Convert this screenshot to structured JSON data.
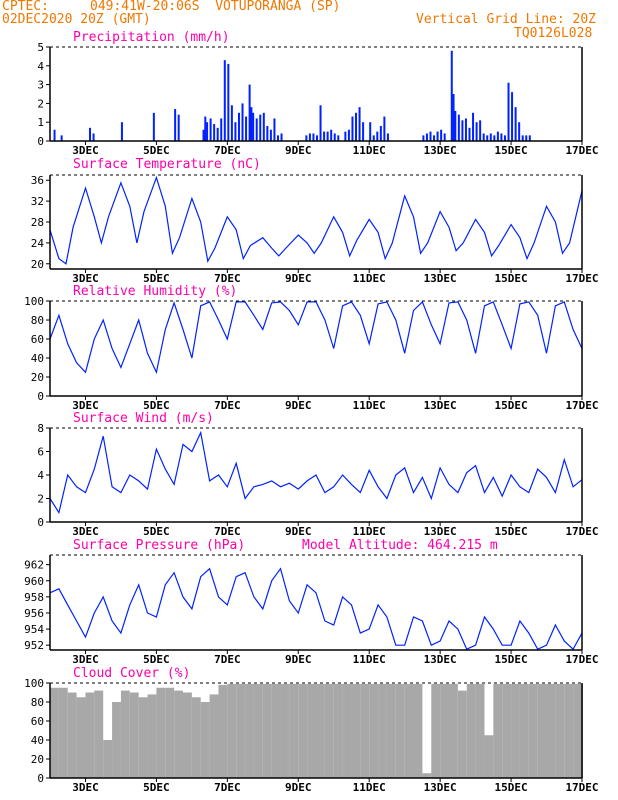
{
  "header": {
    "source": "CPTEC:",
    "location": "049:41W-20:06S  VOTUPORANGA (SP)",
    "run": "02DEC2020 20Z (GMT)",
    "grid_note": "Vertical Grid Line: 20Z",
    "code": "TQ0126L028"
  },
  "colors": {
    "header": "#f07800",
    "title": "#ff00aa",
    "series": "#0022ff",
    "bar": "#0022ff",
    "cloud": "#a8a8a8",
    "axis": "#000000"
  },
  "chart_data": [
    {
      "type": "bar",
      "title": "Precipitation (mm/h)",
      "x_ticks": [
        "3DEC",
        "5DEC",
        "7DEC",
        "9DEC",
        "11DEC",
        "13DEC",
        "15DEC",
        "17DEC"
      ],
      "ylim": [
        0,
        5
      ],
      "y_ticks": [
        0,
        1,
        2,
        3,
        4,
        5
      ],
      "x": [
        0.1,
        0.3,
        1.1,
        1.2,
        2.0,
        2.9,
        3.5,
        3.6,
        4.3,
        4.35,
        4.4,
        4.5,
        4.6,
        4.7,
        4.8,
        4.9,
        5.0,
        5.1,
        5.2,
        5.3,
        5.4,
        5.5,
        5.6,
        5.65,
        5.7,
        5.8,
        5.9,
        6.0,
        6.1,
        6.2,
        6.3,
        6.4,
        6.5,
        7.2,
        7.3,
        7.4,
        7.5,
        7.6,
        7.7,
        7.8,
        7.9,
        8.0,
        8.1,
        8.3,
        8.4,
        8.5,
        8.6,
        8.7,
        8.8,
        9.0,
        9.1,
        9.2,
        9.3,
        9.4,
        9.5,
        10.5,
        10.6,
        10.7,
        10.8,
        10.9,
        11.0,
        11.1,
        11.3,
        11.35,
        11.4,
        11.5,
        11.6,
        11.7,
        11.8,
        11.9,
        12.0,
        12.1,
        12.2,
        12.3,
        12.4,
        12.5,
        12.6,
        12.7,
        12.8,
        12.9,
        13.0,
        13.1,
        13.2,
        13.3,
        13.4,
        13.5
      ],
      "values": [
        0.6,
        0.3,
        0.7,
        0.4,
        1.0,
        1.5,
        1.7,
        1.4,
        0.6,
        1.3,
        1.0,
        1.2,
        0.9,
        0.7,
        1.2,
        4.3,
        4.1,
        1.9,
        1.0,
        1.5,
        2.0,
        1.3,
        3.0,
        1.8,
        1.5,
        1.2,
        1.4,
        1.5,
        0.8,
        0.6,
        1.2,
        0.3,
        0.4,
        0.3,
        0.4,
        0.4,
        0.3,
        1.9,
        0.5,
        0.5,
        0.6,
        0.4,
        0.3,
        0.5,
        0.6,
        1.3,
        1.5,
        1.8,
        1.0,
        1.0,
        0.3,
        0.5,
        0.8,
        1.3,
        0.4,
        0.3,
        0.4,
        0.5,
        0.3,
        0.5,
        0.6,
        0.4,
        4.8,
        2.5,
        1.6,
        1.4,
        1.1,
        1.2,
        0.7,
        1.5,
        1.0,
        1.1,
        0.4,
        0.3,
        0.4,
        0.3,
        0.5,
        0.4,
        0.3,
        3.1,
        2.6,
        1.8,
        1.0,
        0.3,
        0.3,
        0.3
      ]
    },
    {
      "type": "line",
      "title": "Surface Temperature (nC)",
      "x_ticks": [
        "3DEC",
        "5DEC",
        "7DEC",
        "9DEC",
        "11DEC",
        "13DEC",
        "15DEC",
        "17DEC"
      ],
      "ylim": [
        19,
        37
      ],
      "y_ticks": [
        20,
        24,
        28,
        32,
        36
      ],
      "x": [
        0.0,
        0.25,
        0.45,
        0.65,
        1.0,
        1.25,
        1.45,
        1.65,
        2.0,
        2.25,
        2.45,
        2.65,
        3.0,
        3.25,
        3.45,
        3.65,
        4.0,
        4.25,
        4.45,
        4.65,
        5.0,
        5.25,
        5.45,
        5.65,
        6.0,
        6.25,
        6.45,
        6.65,
        7.0,
        7.25,
        7.45,
        7.65,
        8.0,
        8.25,
        8.45,
        8.65,
        9.0,
        9.25,
        9.45,
        9.65,
        10.0,
        10.25,
        10.45,
        10.65,
        11.0,
        11.25,
        11.45,
        11.65,
        12.0,
        12.25,
        12.45,
        12.65,
        13.0,
        13.25,
        13.45,
        13.65,
        14.0,
        14.25,
        14.45,
        14.65,
        15.0
      ],
      "values": [
        26.5,
        21.0,
        20.0,
        27.0,
        34.5,
        29.0,
        24.0,
        29.0,
        35.5,
        31.0,
        24.0,
        30.0,
        36.5,
        31.0,
        22.0,
        25.0,
        32.5,
        28.0,
        20.5,
        23.0,
        29.0,
        26.5,
        21.0,
        23.5,
        25.0,
        23.0,
        21.5,
        23.0,
        25.5,
        24.0,
        22.0,
        24.0,
        29.0,
        26.0,
        21.5,
        24.5,
        28.5,
        26.0,
        21.0,
        24.0,
        33.0,
        29.0,
        22.0,
        24.0,
        30.0,
        27.0,
        22.5,
        24.0,
        28.5,
        26.0,
        21.5,
        23.5,
        27.5,
        25.0,
        21.0,
        24.0,
        31.0,
        28.0,
        22.0,
        24.0,
        34.0
      ]
    },
    {
      "type": "line",
      "title": "Relative Humidity (%)",
      "x_ticks": [
        "3DEC",
        "5DEC",
        "7DEC",
        "9DEC",
        "11DEC",
        "13DEC",
        "15DEC",
        "17DEC"
      ],
      "ylim": [
        0,
        100
      ],
      "y_ticks": [
        0,
        20,
        40,
        60,
        80,
        100
      ],
      "x": [
        0.0,
        0.25,
        0.5,
        0.75,
        1.0,
        1.25,
        1.5,
        1.75,
        2.0,
        2.25,
        2.5,
        2.75,
        3.0,
        3.25,
        3.5,
        3.75,
        4.0,
        4.25,
        4.5,
        4.75,
        5.0,
        5.25,
        5.5,
        5.75,
        6.0,
        6.25,
        6.5,
        6.75,
        7.0,
        7.25,
        7.5,
        7.75,
        8.0,
        8.25,
        8.5,
        8.75,
        9.0,
        9.25,
        9.5,
        9.75,
        10.0,
        10.25,
        10.5,
        10.75,
        11.0,
        11.25,
        11.5,
        11.75,
        12.0,
        12.25,
        12.5,
        12.75,
        13.0,
        13.25,
        13.5,
        13.75,
        14.0,
        14.25,
        14.5,
        14.75,
        15.0
      ],
      "values": [
        60,
        85,
        55,
        35,
        25,
        60,
        80,
        50,
        30,
        55,
        80,
        45,
        25,
        70,
        98,
        70,
        40,
        95,
        99,
        80,
        60,
        99,
        99,
        85,
        70,
        98,
        99,
        90,
        75,
        99,
        99,
        80,
        50,
        95,
        99,
        85,
        55,
        97,
        99,
        80,
        45,
        90,
        99,
        75,
        55,
        98,
        99,
        80,
        45,
        95,
        99,
        75,
        50,
        97,
        99,
        85,
        45,
        95,
        99,
        70,
        50
      ]
    },
    {
      "type": "line",
      "title": "Surface Wind (m/s)",
      "x_ticks": [
        "3DEC",
        "5DEC",
        "7DEC",
        "9DEC",
        "11DEC",
        "13DEC",
        "15DEC",
        "17DEC"
      ],
      "ylim": [
        0,
        8
      ],
      "y_ticks": [
        0,
        2,
        4,
        6,
        8
      ],
      "x": [
        0.0,
        0.25,
        0.5,
        0.75,
        1.0,
        1.25,
        1.5,
        1.75,
        2.0,
        2.25,
        2.5,
        2.75,
        3.0,
        3.25,
        3.5,
        3.75,
        4.0,
        4.25,
        4.5,
        4.75,
        5.0,
        5.25,
        5.5,
        5.75,
        6.0,
        6.25,
        6.5,
        6.75,
        7.0,
        7.25,
        7.5,
        7.75,
        8.0,
        8.25,
        8.5,
        8.75,
        9.0,
        9.25,
        9.5,
        9.75,
        10.0,
        10.25,
        10.5,
        10.75,
        11.0,
        11.25,
        11.5,
        11.75,
        12.0,
        12.25,
        12.5,
        12.75,
        13.0,
        13.25,
        13.5,
        13.75,
        14.0,
        14.25,
        14.5,
        14.75,
        15.0
      ],
      "values": [
        2.0,
        0.8,
        4.0,
        3.0,
        2.5,
        4.5,
        7.3,
        3.0,
        2.5,
        4.0,
        3.5,
        2.8,
        6.2,
        4.5,
        3.2,
        6.6,
        6.0,
        7.6,
        3.5,
        4.0,
        3.0,
        5.0,
        2.0,
        3.0,
        3.2,
        3.5,
        3.0,
        3.3,
        2.8,
        3.5,
        4.0,
        2.5,
        3.0,
        4.0,
        3.2,
        2.5,
        4.4,
        3.0,
        2.0,
        4.0,
        4.6,
        2.5,
        3.8,
        2.0,
        4.6,
        3.2,
        2.5,
        4.2,
        4.8,
        2.5,
        3.8,
        2.2,
        4.0,
        3.0,
        2.5,
        4.5,
        3.8,
        2.5,
        5.3,
        3.0,
        3.6
      ]
    },
    {
      "type": "line",
      "title": "Surface Pressure (hPa)",
      "annotation": "Model Altitude: 464.215 m",
      "x_ticks": [
        "3DEC",
        "5DEC",
        "7DEC",
        "9DEC",
        "11DEC",
        "13DEC",
        "15DEC",
        "17DEC"
      ],
      "ylim": [
        951.4,
        963.2
      ],
      "y_ticks": [
        952,
        954,
        956,
        958,
        960,
        962
      ],
      "x": [
        0.0,
        0.25,
        0.5,
        0.75,
        1.0,
        1.25,
        1.5,
        1.75,
        2.0,
        2.25,
        2.5,
        2.75,
        3.0,
        3.25,
        3.5,
        3.75,
        4.0,
        4.25,
        4.5,
        4.75,
        5.0,
        5.25,
        5.5,
        5.75,
        6.0,
        6.25,
        6.5,
        6.75,
        7.0,
        7.25,
        7.5,
        7.75,
        8.0,
        8.25,
        8.5,
        8.75,
        9.0,
        9.25,
        9.5,
        9.75,
        10.0,
        10.25,
        10.5,
        10.75,
        11.0,
        11.25,
        11.5,
        11.75,
        12.0,
        12.25,
        12.5,
        12.75,
        13.0,
        13.25,
        13.5,
        13.75,
        14.0,
        14.25,
        14.5,
        14.75,
        15.0
      ],
      "values": [
        958.5,
        959.0,
        957.0,
        955.0,
        953.0,
        956.0,
        958.0,
        955.0,
        953.5,
        957.0,
        959.5,
        956.0,
        955.5,
        959.5,
        961.0,
        958.0,
        956.5,
        960.5,
        961.5,
        958.0,
        957.0,
        960.5,
        961.0,
        958.0,
        956.5,
        960.0,
        961.5,
        957.5,
        956.0,
        959.5,
        958.5,
        955.0,
        954.5,
        958.0,
        957.0,
        953.5,
        954.0,
        957.0,
        955.5,
        952.0,
        952.0,
        955.5,
        955.0,
        952.0,
        952.5,
        955.0,
        954.0,
        951.5,
        952.0,
        955.5,
        954.0,
        952.0,
        952.0,
        955.0,
        953.5,
        951.5,
        952.0,
        954.5,
        952.5,
        951.5,
        953.5
      ]
    },
    {
      "type": "area",
      "title": "Cloud Cover (%)",
      "x_ticks": [
        "3DEC",
        "5DEC",
        "7DEC",
        "9DEC",
        "11DEC",
        "13DEC",
        "15DEC",
        "17DEC"
      ],
      "ylim": [
        0,
        100
      ],
      "y_ticks": [
        0,
        20,
        40,
        60,
        80,
        100
      ],
      "x": [
        0.0,
        0.25,
        0.5,
        0.75,
        1.0,
        1.25,
        1.5,
        1.75,
        2.0,
        2.25,
        2.5,
        2.75,
        3.0,
        3.25,
        3.5,
        3.75,
        4.0,
        4.25,
        4.5,
        4.75,
        5.0,
        5.25,
        5.5,
        5.75,
        6.0,
        6.25,
        6.5,
        6.75,
        7.0,
        7.25,
        7.5,
        7.75,
        8.0,
        8.25,
        8.5,
        8.75,
        9.0,
        9.25,
        9.5,
        9.75,
        10.0,
        10.25,
        10.5,
        10.75,
        11.0,
        11.25,
        11.5,
        11.75,
        12.0,
        12.25,
        12.5,
        12.75,
        13.0,
        13.25,
        13.5,
        13.75,
        14.0,
        14.25,
        14.5,
        14.75,
        15.0
      ],
      "values": [
        95,
        95,
        90,
        85,
        90,
        92,
        40,
        80,
        92,
        90,
        85,
        88,
        95,
        95,
        92,
        90,
        85,
        80,
        88,
        98,
        99,
        99,
        99,
        99,
        99,
        99,
        99,
        99,
        99,
        99,
        99,
        99,
        99,
        99,
        99,
        99,
        99,
        99,
        99,
        99,
        99,
        99,
        5,
        99,
        99,
        99,
        92,
        99,
        99,
        45,
        99,
        99,
        99,
        99,
        99,
        99,
        99,
        99,
        99,
        99,
        99
      ]
    }
  ]
}
